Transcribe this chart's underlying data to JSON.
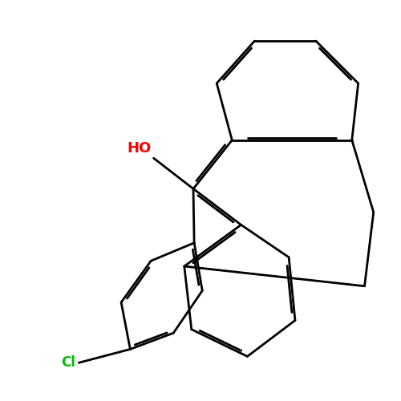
{
  "bg_color": "#ffffff",
  "bond_color": "#000000",
  "ho_color": "#ff0000",
  "cl_color": "#00bb00",
  "line_width": 2.0,
  "dbo": 0.055
}
